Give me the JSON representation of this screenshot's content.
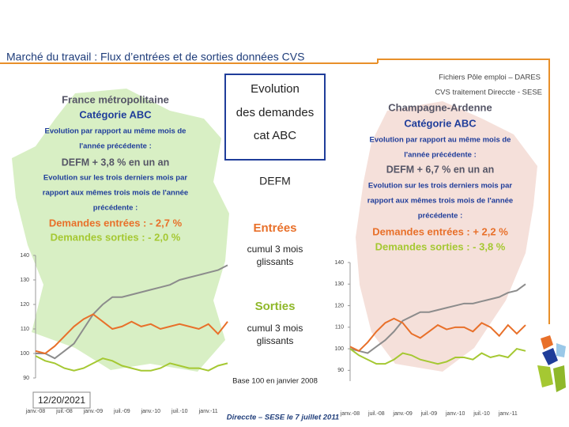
{
  "header": {
    "title": "Marché du travail : Flux d’entrées et de sorties données CVS"
  },
  "source": [
    "Fichiers Pôle emploi – DARES",
    "CVS traitement Direccte - SESE"
  ],
  "center": {
    "box": [
      "Evolution",
      "des demandes",
      "cat ABC"
    ],
    "defm": "DEFM",
    "entrees": "Entrées",
    "entrees_note": [
      "cumul 3 mois",
      "glissants"
    ],
    "sorties": "Sorties",
    "sorties_note": [
      "cumul 3 mois",
      "glissants"
    ],
    "base": "Base 100 en janvier 2008"
  },
  "left_panel": {
    "region": "France métropolitaine",
    "category": "Catégorie ABC",
    "annual_intro": [
      "Evolution par rapport au même mois de",
      "l'année précédente :"
    ],
    "defm": "DEFM + 3,8 % en un an",
    "quarter_intro": [
      "Evolution sur les trois derniers mois par",
      "rapport aux mêmes trois mois de l'année",
      "précédente :"
    ],
    "entrees": "Demandes entrées : - 2,7 %",
    "sorties": "Demandes sorties : - 2,0 %"
  },
  "right_panel": {
    "region": "Champagne-Ardenne",
    "category": "Catégorie ABC",
    "annual_intro": [
      "Evolution par rapport au même mois de",
      "l'année précédente :"
    ],
    "defm": "DEFM + 6,7 % en un an",
    "quarter_intro": [
      "Evolution sur les trois derniers mois par",
      "rapport aux mêmes trois mois de l'année",
      "précédente :"
    ],
    "entrees": "Demandes entrées : + 2,2 %",
    "sorties": "Demandes sorties : - 3,8 %"
  },
  "footer": {
    "credit": "Direccte – SESE le 7 juillet 2011",
    "date": "12/20/2021"
  },
  "chart_data": [
    {
      "type": "line",
      "categories": [
        "janv.-08",
        null,
        null,
        "juil.-08",
        null,
        null,
        "janv.-09",
        null,
        null,
        "juil.-09",
        null,
        null,
        "janv.-10",
        null,
        null,
        "juil.-10",
        null,
        null,
        "janv.-11",
        null,
        null
      ],
      "ylim": [
        90,
        140
      ],
      "yticks": [
        90,
        100,
        110,
        120,
        130,
        140
      ],
      "series": [
        {
          "name": "DEFM",
          "color": "#8c8c8c",
          "values": [
            100,
            100,
            98,
            101,
            104,
            110,
            116,
            120,
            123,
            123,
            124,
            125,
            126,
            127,
            128,
            130,
            131,
            132,
            133,
            134,
            136
          ]
        },
        {
          "name": "Entrées",
          "color": "#e8702a",
          "values": [
            101,
            100,
            103,
            107,
            111,
            114,
            116,
            113,
            110,
            111,
            113,
            111,
            112,
            110,
            111,
            112,
            111,
            110,
            112,
            108,
            113
          ]
        },
        {
          "name": "Sorties",
          "color": "#a5c832",
          "values": [
            99,
            97,
            96,
            94,
            93,
            94,
            96,
            98,
            97,
            95,
            94,
            93,
            93,
            94,
            96,
            95,
            94,
            94,
            93,
            95,
            96
          ]
        }
      ]
    },
    {
      "type": "line",
      "categories": [
        "janv.-08",
        null,
        null,
        "juil.-08",
        null,
        null,
        "janv.-09",
        null,
        null,
        "juil.-09",
        null,
        null,
        "janv.-10",
        null,
        null,
        "juil.-10",
        null,
        null,
        "janv.-11",
        null,
        null
      ],
      "ylim": [
        85,
        140
      ],
      "yticks": [
        90,
        100,
        110,
        120,
        130,
        140
      ],
      "series": [
        {
          "name": "DEFM",
          "color": "#8c8c8c",
          "values": [
            100,
            99,
            98,
            101,
            104,
            108,
            113,
            115,
            117,
            117,
            118,
            119,
            120,
            121,
            121,
            122,
            123,
            124,
            126,
            127,
            130
          ]
        },
        {
          "name": "Entrées",
          "color": "#e8702a",
          "values": [
            101,
            99,
            103,
            108,
            112,
            114,
            112,
            107,
            105,
            108,
            111,
            109,
            110,
            110,
            108,
            112,
            110,
            106,
            111,
            107,
            111
          ]
        },
        {
          "name": "Sorties",
          "color": "#a5c832",
          "values": [
            100,
            97,
            95,
            93,
            93,
            95,
            98,
            97,
            95,
            94,
            93,
            94,
            96,
            96,
            95,
            98,
            96,
            97,
            96,
            100,
            99
          ]
        }
      ]
    }
  ]
}
